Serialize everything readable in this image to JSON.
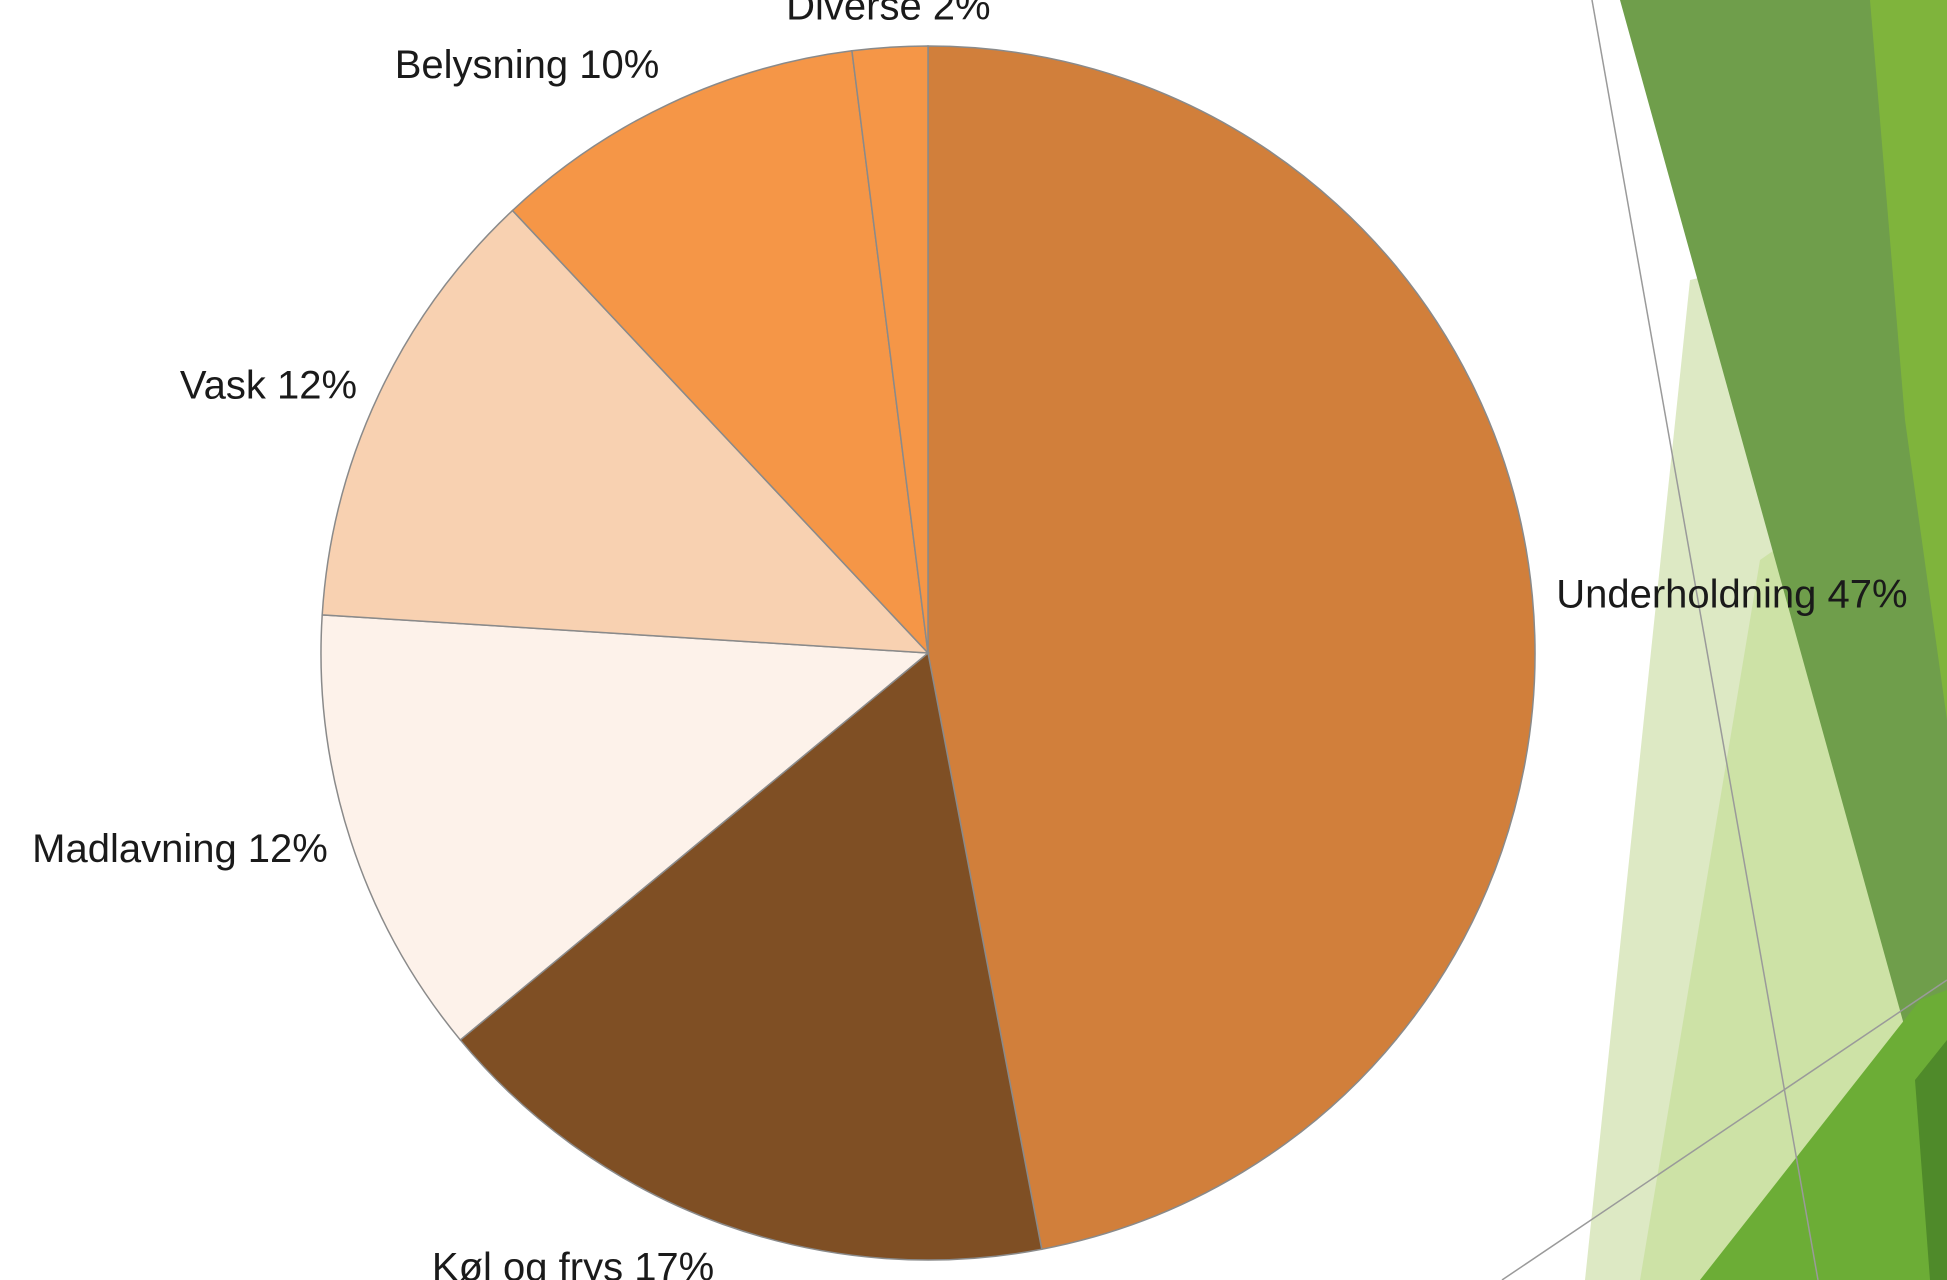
{
  "chart_data": {
    "type": "pie",
    "title": "",
    "start_angle_deg": 0,
    "direction": "clockwise",
    "slices": [
      {
        "label": "Underholdning 47%",
        "value": 47,
        "color": "#D17F3B"
      },
      {
        "label": "Køl og frys 17%",
        "value": 17,
        "color": "#7F4F24"
      },
      {
        "label": "Madlavning 12%",
        "value": 12,
        "color": "#FDF2EA"
      },
      {
        "label": "Vask 12%",
        "value": 12,
        "color": "#F8D1B1"
      },
      {
        "label": "Belysning 10%",
        "value": 10,
        "color": "#F59647"
      },
      {
        "label": "Diverse 2%",
        "value": 2,
        "color": "#F59647"
      }
    ]
  },
  "theme": {
    "background": "#FFFFFF",
    "slice_border": "#8A8A8A",
    "accent_green_dark": "#5E9A3A",
    "accent_green_mid": "#7DB63F",
    "accent_green_light": "#CFE3A8"
  }
}
